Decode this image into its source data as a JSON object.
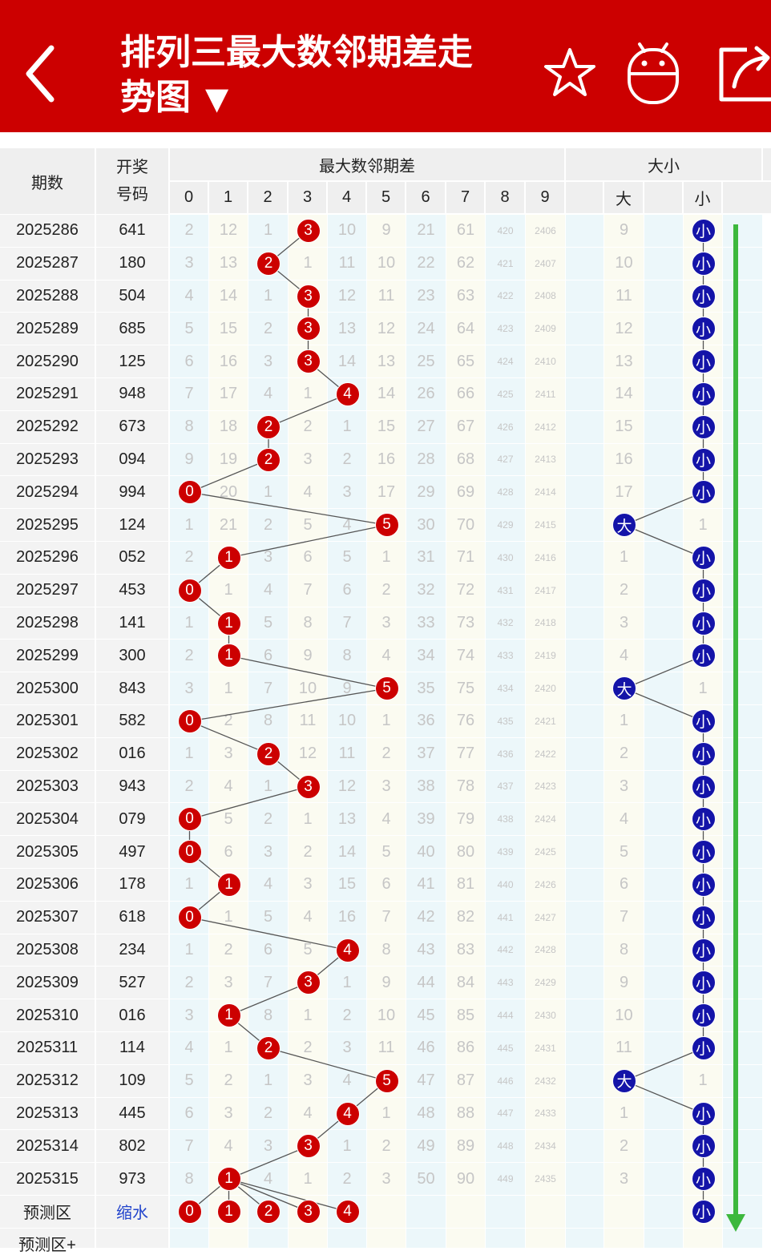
{
  "header": {
    "title_line1": "排列三最大数邻期差走",
    "title_line2": "势图",
    "dropdown_glyph": "▼",
    "icons": [
      "back-arrow-icon",
      "star-icon",
      "robot-icon",
      "share-icon"
    ]
  },
  "table": {
    "col_period": "期数",
    "col_draw_line1": "开奖",
    "col_draw_line2": "号码",
    "group_diff": "最大数邻期差",
    "diff_columns": [
      "0",
      "1",
      "2",
      "3",
      "4",
      "5",
      "6",
      "7",
      "8",
      "9"
    ],
    "group_size": "大小",
    "size_columns": [
      "大",
      "小"
    ],
    "rows": [
      {
        "period": "2025286",
        "draw": "641",
        "diff": [
          "2",
          "12",
          "1",
          "3",
          "10",
          "9",
          "21",
          "61",
          "420",
          "2406"
        ],
        "hit": 3,
        "big": "9",
        "small": "小",
        "size": "small"
      },
      {
        "period": "2025287",
        "draw": "180",
        "diff": [
          "3",
          "13",
          "2",
          "1",
          "11",
          "10",
          "22",
          "62",
          "421",
          "2407"
        ],
        "hit": 2,
        "big": "10",
        "small": "小",
        "size": "small"
      },
      {
        "period": "2025288",
        "draw": "504",
        "diff": [
          "4",
          "14",
          "1",
          "3",
          "12",
          "11",
          "23",
          "63",
          "422",
          "2408"
        ],
        "hit": 3,
        "big": "11",
        "small": "小",
        "size": "small"
      },
      {
        "period": "2025289",
        "draw": "685",
        "diff": [
          "5",
          "15",
          "2",
          "3",
          "13",
          "12",
          "24",
          "64",
          "423",
          "2409"
        ],
        "hit": 3,
        "big": "12",
        "small": "小",
        "size": "small"
      },
      {
        "period": "2025290",
        "draw": "125",
        "diff": [
          "6",
          "16",
          "3",
          "3",
          "14",
          "13",
          "25",
          "65",
          "424",
          "2410"
        ],
        "hit": 3,
        "big": "13",
        "small": "小",
        "size": "small"
      },
      {
        "period": "2025291",
        "draw": "948",
        "diff": [
          "7",
          "17",
          "4",
          "1",
          "4",
          "14",
          "26",
          "66",
          "425",
          "2411"
        ],
        "hit": 4,
        "big": "14",
        "small": "小",
        "size": "small"
      },
      {
        "period": "2025292",
        "draw": "673",
        "diff": [
          "8",
          "18",
          "2",
          "2",
          "1",
          "15",
          "27",
          "67",
          "426",
          "2412"
        ],
        "hit": 2,
        "big": "15",
        "small": "小",
        "size": "small"
      },
      {
        "period": "2025293",
        "draw": "094",
        "diff": [
          "9",
          "19",
          "2",
          "3",
          "2",
          "16",
          "28",
          "68",
          "427",
          "2413"
        ],
        "hit": 2,
        "big": "16",
        "small": "小",
        "size": "small"
      },
      {
        "period": "2025294",
        "draw": "994",
        "diff": [
          "0",
          "20",
          "1",
          "4",
          "3",
          "17",
          "29",
          "69",
          "428",
          "2414"
        ],
        "hit": 0,
        "big": "17",
        "small": "小",
        "size": "small"
      },
      {
        "period": "2025295",
        "draw": "124",
        "diff": [
          "1",
          "21",
          "2",
          "5",
          "4",
          "5",
          "30",
          "70",
          "429",
          "2415"
        ],
        "hit": 5,
        "big": "大",
        "small": "1",
        "size": "big"
      },
      {
        "period": "2025296",
        "draw": "052",
        "diff": [
          "2",
          "1",
          "3",
          "6",
          "5",
          "1",
          "31",
          "71",
          "430",
          "2416"
        ],
        "hit": 1,
        "big": "1",
        "small": "小",
        "size": "small"
      },
      {
        "period": "2025297",
        "draw": "453",
        "diff": [
          "0",
          "1",
          "4",
          "7",
          "6",
          "2",
          "32",
          "72",
          "431",
          "2417"
        ],
        "hit": 0,
        "big": "2",
        "small": "小",
        "size": "small"
      },
      {
        "period": "2025298",
        "draw": "141",
        "diff": [
          "1",
          "1",
          "5",
          "8",
          "7",
          "3",
          "33",
          "73",
          "432",
          "2418"
        ],
        "hit": 1,
        "big": "3",
        "small": "小",
        "size": "small"
      },
      {
        "period": "2025299",
        "draw": "300",
        "diff": [
          "2",
          "1",
          "6",
          "9",
          "8",
          "4",
          "34",
          "74",
          "433",
          "2419"
        ],
        "hit": 1,
        "big": "4",
        "small": "小",
        "size": "small"
      },
      {
        "period": "2025300",
        "draw": "843",
        "diff": [
          "3",
          "1",
          "7",
          "10",
          "9",
          "5",
          "35",
          "75",
          "434",
          "2420"
        ],
        "hit": 5,
        "big": "大",
        "small": "1",
        "size": "big"
      },
      {
        "period": "2025301",
        "draw": "582",
        "diff": [
          "0",
          "2",
          "8",
          "11",
          "10",
          "1",
          "36",
          "76",
          "435",
          "2421"
        ],
        "hit": 0,
        "big": "1",
        "small": "小",
        "size": "small"
      },
      {
        "period": "2025302",
        "draw": "016",
        "diff": [
          "1",
          "3",
          "2",
          "12",
          "11",
          "2",
          "37",
          "77",
          "436",
          "2422"
        ],
        "hit": 2,
        "big": "2",
        "small": "小",
        "size": "small"
      },
      {
        "period": "2025303",
        "draw": "943",
        "diff": [
          "2",
          "4",
          "1",
          "3",
          "12",
          "3",
          "38",
          "78",
          "437",
          "2423"
        ],
        "hit": 3,
        "big": "3",
        "small": "小",
        "size": "small"
      },
      {
        "period": "2025304",
        "draw": "079",
        "diff": [
          "0",
          "5",
          "2",
          "1",
          "13",
          "4",
          "39",
          "79",
          "438",
          "2424"
        ],
        "hit": 0,
        "big": "4",
        "small": "小",
        "size": "small"
      },
      {
        "period": "2025305",
        "draw": "497",
        "diff": [
          "0",
          "6",
          "3",
          "2",
          "14",
          "5",
          "40",
          "80",
          "439",
          "2425"
        ],
        "hit": 0,
        "big": "5",
        "small": "小",
        "size": "small"
      },
      {
        "period": "2025306",
        "draw": "178",
        "diff": [
          "1",
          "1",
          "4",
          "3",
          "15",
          "6",
          "41",
          "81",
          "440",
          "2426"
        ],
        "hit": 1,
        "big": "6",
        "small": "小",
        "size": "small"
      },
      {
        "period": "2025307",
        "draw": "618",
        "diff": [
          "0",
          "1",
          "5",
          "4",
          "16",
          "7",
          "42",
          "82",
          "441",
          "2427"
        ],
        "hit": 0,
        "big": "7",
        "small": "小",
        "size": "small"
      },
      {
        "period": "2025308",
        "draw": "234",
        "diff": [
          "1",
          "2",
          "6",
          "5",
          "4",
          "8",
          "43",
          "83",
          "442",
          "2428"
        ],
        "hit": 4,
        "big": "8",
        "small": "小",
        "size": "small"
      },
      {
        "period": "2025309",
        "draw": "527",
        "diff": [
          "2",
          "3",
          "7",
          "3",
          "1",
          "9",
          "44",
          "84",
          "443",
          "2429"
        ],
        "hit": 3,
        "big": "9",
        "small": "小",
        "size": "small"
      },
      {
        "period": "2025310",
        "draw": "016",
        "diff": [
          "3",
          "1",
          "8",
          "1",
          "2",
          "10",
          "45",
          "85",
          "444",
          "2430"
        ],
        "hit": 1,
        "big": "10",
        "small": "小",
        "size": "small"
      },
      {
        "period": "2025311",
        "draw": "114",
        "diff": [
          "4",
          "1",
          "2",
          "2",
          "3",
          "11",
          "46",
          "86",
          "445",
          "2431"
        ],
        "hit": 2,
        "big": "11",
        "small": "小",
        "size": "small"
      },
      {
        "period": "2025312",
        "draw": "109",
        "diff": [
          "5",
          "2",
          "1",
          "3",
          "4",
          "5",
          "47",
          "87",
          "446",
          "2432"
        ],
        "hit": 5,
        "big": "大",
        "small": "1",
        "size": "big"
      },
      {
        "period": "2025313",
        "draw": "445",
        "diff": [
          "6",
          "3",
          "2",
          "4",
          "4",
          "1",
          "48",
          "88",
          "447",
          "2433"
        ],
        "hit": 4,
        "big": "1",
        "small": "小",
        "size": "small"
      },
      {
        "period": "2025314",
        "draw": "802",
        "diff": [
          "7",
          "4",
          "3",
          "3",
          "1",
          "2",
          "49",
          "89",
          "448",
          "2434"
        ],
        "hit": 3,
        "big": "2",
        "small": "小",
        "size": "small"
      },
      {
        "period": "2025315",
        "draw": "973",
        "diff": [
          "8",
          "1",
          "4",
          "1",
          "2",
          "3",
          "50",
          "90",
          "449",
          "2435"
        ],
        "hit": 1,
        "big": "3",
        "small": "小",
        "size": "small"
      }
    ],
    "prediction": {
      "label": "预测区",
      "link": "缩水",
      "balls": [
        "0",
        "1",
        "2",
        "3",
        "4"
      ],
      "size_ball": "小"
    },
    "prediction_plus": {
      "label": "预测区+"
    }
  },
  "colors": {
    "header_red": "#cc0000",
    "ball_red": "#cc0000",
    "ball_blue": "#1414a8",
    "trend_arrow_green": "#3db83d",
    "link_blue": "#2244cc"
  }
}
